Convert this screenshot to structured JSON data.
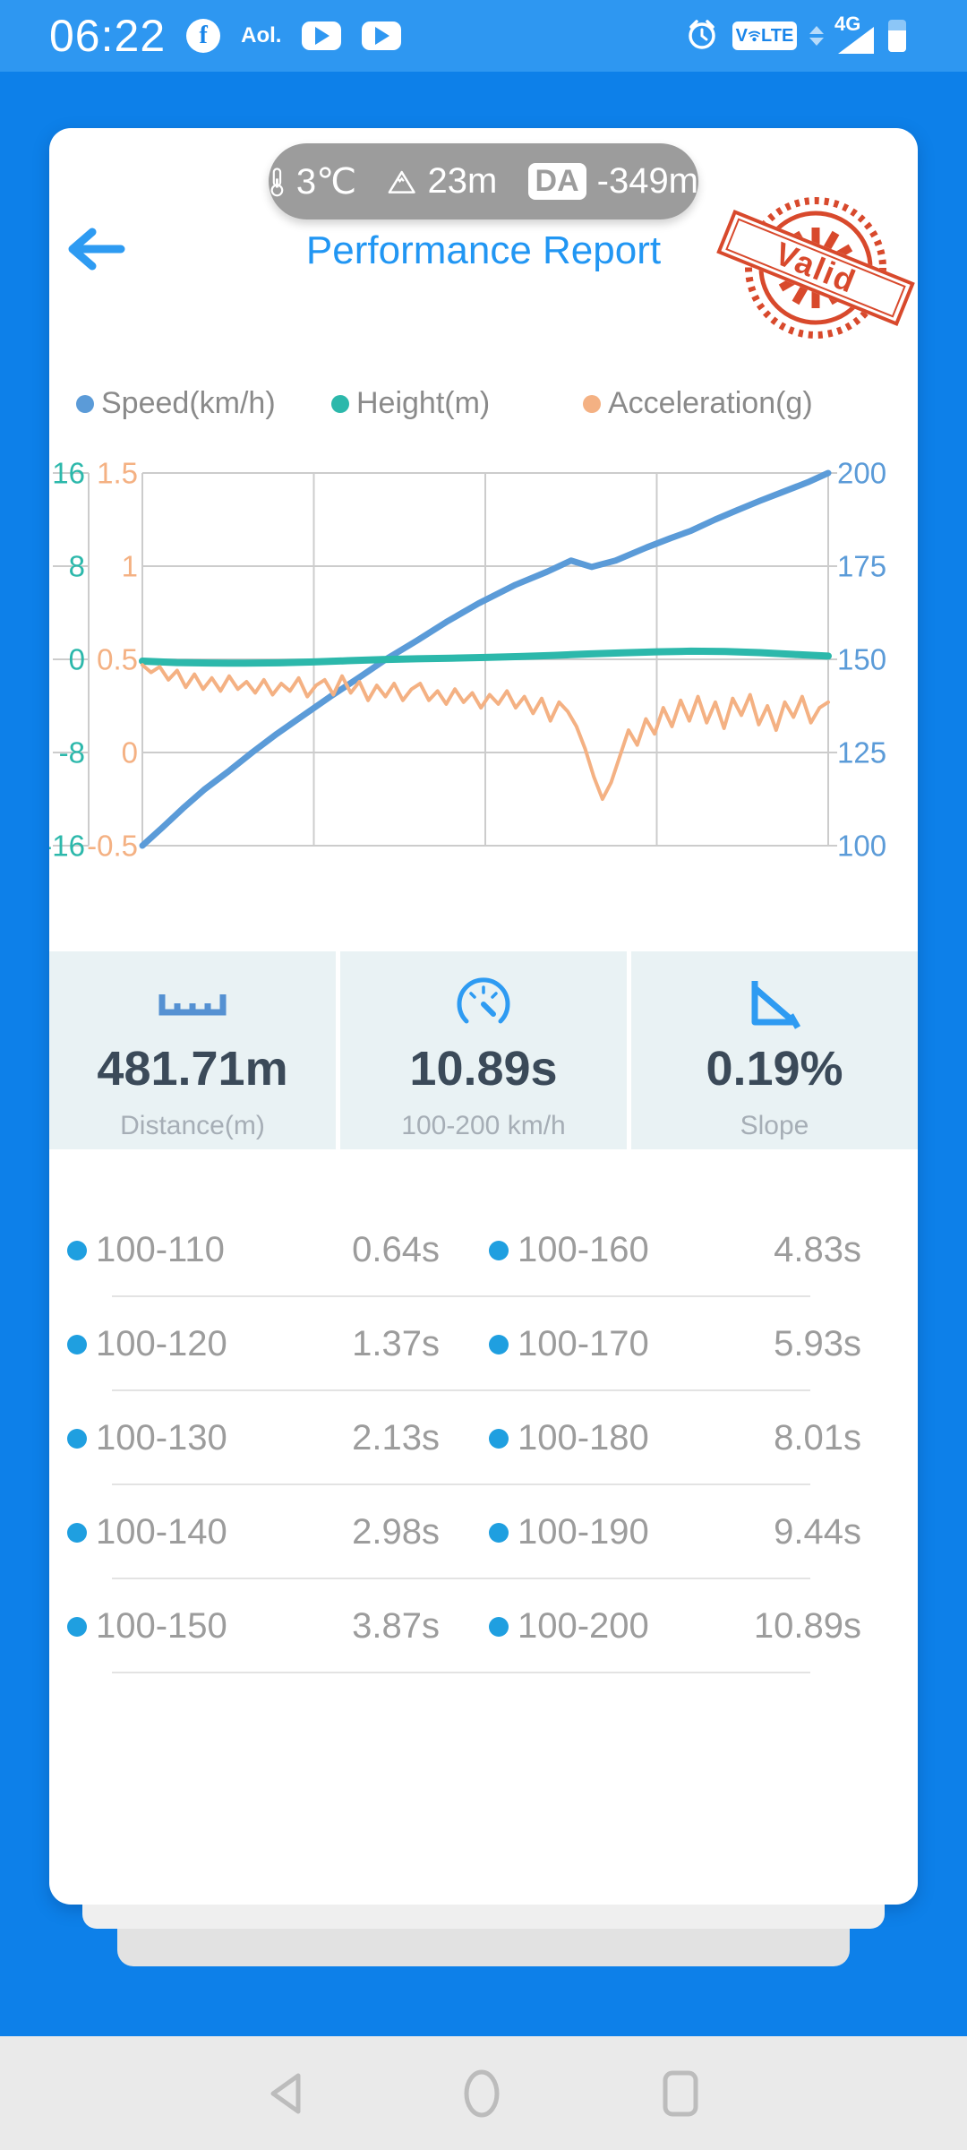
{
  "status_bar": {
    "time": "06:22",
    "fb_letter": "f",
    "aol_label": "Aol.",
    "volte_label_left": "V",
    "volte_label_right": "LTE",
    "network_label": "4G"
  },
  "pill": {
    "temperature": "3℃",
    "altitude": "23m",
    "da_label": "DA",
    "da_value": "-349m"
  },
  "header": {
    "title": "Performance Report",
    "stamp_label": "Valid"
  },
  "legend": [
    {
      "label": "Speed(km/h)",
      "color": "#5b9bd8"
    },
    {
      "label": "Height(m)",
      "color": "#2cb8ab"
    },
    {
      "label": "Acceleration(g)",
      "color": "#f4b183"
    }
  ],
  "chart_data": {
    "type": "line",
    "title": "",
    "xlabel": "",
    "x_axis": {
      "range_seconds": [
        0,
        10.89
      ],
      "tick_labels": [],
      "gridlines": 5
    },
    "grid_color": "#cccccc",
    "axes": {
      "height_left_outer": {
        "label": "Height(m)",
        "ticks": [
          "16",
          "8",
          "0",
          "-8",
          "-16"
        ],
        "color": "#2cb8ab"
      },
      "acceleration_left_inner": {
        "label": "Acceleration(g)",
        "ticks": [
          "1.5",
          "1",
          "0.5",
          "0",
          "-0.5"
        ],
        "color": "#f4b183"
      },
      "speed_right": {
        "label": "Speed(km/h)",
        "ticks": [
          "200",
          "175",
          "150",
          "125",
          "100"
        ],
        "color": "#5b9bd8"
      }
    },
    "series": [
      {
        "name": "Speed(km/h)",
        "axis": "right",
        "color": "#5b9bd8",
        "width": 7,
        "points": [
          [
            0,
            100
          ],
          [
            0.03,
            105
          ],
          [
            0.059,
            110
          ],
          [
            0.09,
            115
          ],
          [
            0.126,
            120
          ],
          [
            0.16,
            125
          ],
          [
            0.196,
            130
          ],
          [
            0.235,
            135
          ],
          [
            0.274,
            140
          ],
          [
            0.315,
            145
          ],
          [
            0.355,
            150
          ],
          [
            0.4,
            155
          ],
          [
            0.443,
            160
          ],
          [
            0.49,
            165
          ],
          [
            0.544,
            170
          ],
          [
            0.59,
            173.5
          ],
          [
            0.625,
            176.5
          ],
          [
            0.655,
            174.8
          ],
          [
            0.69,
            176.5
          ],
          [
            0.735,
            180
          ],
          [
            0.77,
            182.5
          ],
          [
            0.8,
            184.5
          ],
          [
            0.835,
            187.5
          ],
          [
            0.867,
            190
          ],
          [
            0.9,
            192.5
          ],
          [
            0.935,
            195
          ],
          [
            0.97,
            197.5
          ],
          [
            1,
            200
          ]
        ]
      },
      {
        "name": "Height(m)",
        "axis": "left_outer",
        "color": "#2cb8ab",
        "width": 8,
        "points": [
          [
            0,
            -0.15
          ],
          [
            0.05,
            -0.28
          ],
          [
            0.1,
            -0.32
          ],
          [
            0.15,
            -0.33
          ],
          [
            0.2,
            -0.3
          ],
          [
            0.25,
            -0.22
          ],
          [
            0.3,
            -0.12
          ],
          [
            0.35,
            -0.02
          ],
          [
            0.4,
            0.05
          ],
          [
            0.45,
            0.1
          ],
          [
            0.5,
            0.16
          ],
          [
            0.55,
            0.24
          ],
          [
            0.6,
            0.34
          ],
          [
            0.65,
            0.46
          ],
          [
            0.7,
            0.56
          ],
          [
            0.75,
            0.64
          ],
          [
            0.8,
            0.7
          ],
          [
            0.85,
            0.67
          ],
          [
            0.9,
            0.58
          ],
          [
            0.95,
            0.42
          ],
          [
            1,
            0.28
          ]
        ]
      },
      {
        "name": "Acceleration(g)",
        "axis": "left_inner",
        "color": "#f4b183",
        "width": 4,
        "values": [
          0.47,
          0.43,
          0.46,
          0.39,
          0.44,
          0.35,
          0.42,
          0.34,
          0.4,
          0.33,
          0.41,
          0.34,
          0.38,
          0.32,
          0.39,
          0.31,
          0.37,
          0.33,
          0.4,
          0.3,
          0.36,
          0.39,
          0.31,
          0.41,
          0.32,
          0.38,
          0.28,
          0.36,
          0.3,
          0.37,
          0.28,
          0.34,
          0.37,
          0.28,
          0.33,
          0.26,
          0.34,
          0.27,
          0.32,
          0.24,
          0.31,
          0.26,
          0.33,
          0.24,
          0.3,
          0.21,
          0.29,
          0.17,
          0.27,
          0.22,
          0.14,
          0.02,
          -0.13,
          -0.25,
          -0.16,
          -0.02,
          0.12,
          0.04,
          0.18,
          0.1,
          0.24,
          0.14,
          0.28,
          0.17,
          0.3,
          0.16,
          0.27,
          0.13,
          0.29,
          0.2,
          0.31,
          0.15,
          0.25,
          0.12,
          0.27,
          0.19,
          0.3,
          0.16,
          0.24,
          0.27
        ]
      }
    ]
  },
  "stats": [
    {
      "icon": "ruler-icon",
      "value": "481.71m",
      "caption": "Distance(m)"
    },
    {
      "icon": "gauge-icon",
      "value": "10.89s",
      "caption": "100-200 km/h"
    },
    {
      "icon": "slope-icon",
      "value": "0.19%",
      "caption": "Slope"
    }
  ],
  "splits": {
    "rows": [
      {
        "left_range": "100-110",
        "left_time": "0.64s",
        "right_range": "100-160",
        "right_time": "4.83s"
      },
      {
        "left_range": "100-120",
        "left_time": "1.37s",
        "right_range": "100-170",
        "right_time": "5.93s"
      },
      {
        "left_range": "100-130",
        "left_time": "2.13s",
        "right_range": "100-180",
        "right_time": "8.01s"
      },
      {
        "left_range": "100-140",
        "left_time": "2.98s",
        "right_range": "100-190",
        "right_time": "9.44s"
      },
      {
        "left_range": "100-150",
        "left_time": "3.87s",
        "right_range": "100-200",
        "right_time": "10.89s"
      }
    ]
  },
  "icons": {
    "status_bar": [
      "facebook-icon",
      "youtube-icon",
      "youtube-icon",
      "alarm-clock-icon",
      "volte-badge",
      "updown-arrows-icon",
      "signal-4g-icon",
      "battery-icon"
    ],
    "pill": [
      "thermometer-icon",
      "mountain-icon"
    ],
    "stats": [
      "ruler-icon",
      "gauge-icon",
      "slope-icon"
    ],
    "nav": [
      "nav-back-icon",
      "nav-home-icon",
      "nav-recents-icon"
    ]
  },
  "colors": {
    "status_bar_blue": "#2e97f1",
    "page_blue": "#0d80e9",
    "card_white": "#ffffff",
    "title_blue": "#2196f3",
    "pill_gray": "#9c9c9c",
    "stamp_red": "#d8492c",
    "legend_text": "#8a8a8a",
    "grid_gray": "#cccccc",
    "stats_bg": "#e9f2f4",
    "stat_value_text": "#3b4a59",
    "stat_caption_text": "#a6aeb6",
    "split_text": "#9c9c9c",
    "split_dot_blue": "#1f9fe0",
    "nav_bar_bg": "#eaeaea",
    "nav_icon_gray": "#bcbcbc"
  }
}
